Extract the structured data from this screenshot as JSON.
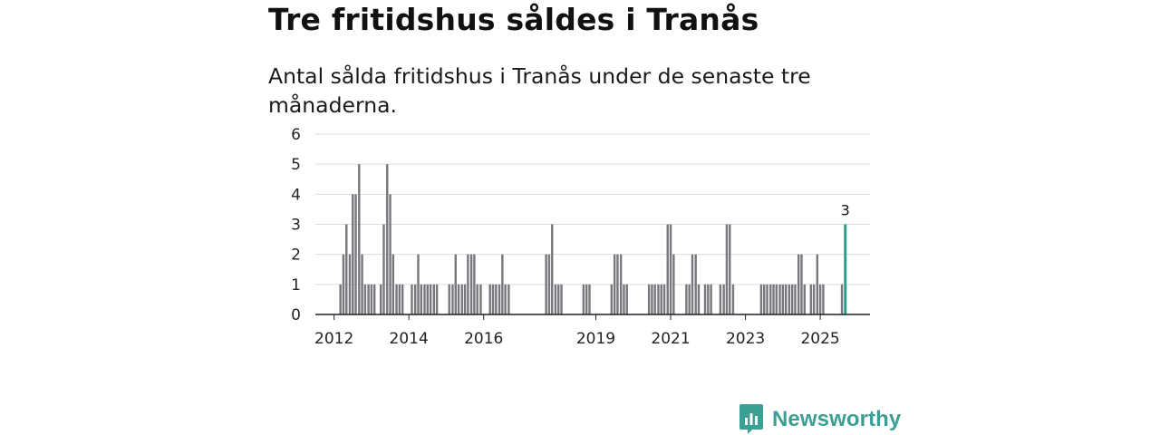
{
  "header": {
    "title": "Tre fritidshus såldes i Tranås",
    "subtitle": "Antal sålda fritidshus i Tranås under de senaste tre månaderna."
  },
  "brand": {
    "name": "Newsworthy",
    "icon": "newsworthy-logo-icon",
    "color": "#3c9f93"
  },
  "colors": {
    "bar": "#77777d",
    "highlight": "#2a9d8f",
    "grid": "#dddddd",
    "axis": "#222222"
  },
  "chart_data": {
    "type": "bar",
    "title": "Tre fritidshus såldes i Tranås",
    "subtitle": "Antal sålda fritidshus i Tranås under de senaste tre månaderna.",
    "xlabel": "",
    "ylabel": "",
    "ylim": [
      0,
      6
    ],
    "yticks": [
      0,
      1,
      2,
      3,
      4,
      5,
      6
    ],
    "xlim": [
      2011.5,
      2026.33
    ],
    "xticks": [
      {
        "value": 2012,
        "label": "2012"
      },
      {
        "value": 2014,
        "label": "2014"
      },
      {
        "value": 2016,
        "label": "2016"
      },
      {
        "value": 2019,
        "label": "2019"
      },
      {
        "value": 2021,
        "label": "2021"
      },
      {
        "value": 2023,
        "label": "2023"
      },
      {
        "value": 2025,
        "label": "2025"
      }
    ],
    "grid": true,
    "period": "monthly, rolling three-month sum",
    "series": [
      {
        "name": "Antal sålda fritidshus",
        "bars": [
          {
            "x": 2012.17,
            "value": 1
          },
          {
            "x": 2012.25,
            "value": 2
          },
          {
            "x": 2012.33,
            "value": 3
          },
          {
            "x": 2012.42,
            "value": 2
          },
          {
            "x": 2012.5,
            "value": 4
          },
          {
            "x": 2012.58,
            "value": 4
          },
          {
            "x": 2012.67,
            "value": 5
          },
          {
            "x": 2012.75,
            "value": 2
          },
          {
            "x": 2012.83,
            "value": 1
          },
          {
            "x": 2012.92,
            "value": 1
          },
          {
            "x": 2013.0,
            "value": 1
          },
          {
            "x": 2013.08,
            "value": 1
          },
          {
            "x": 2013.25,
            "value": 1
          },
          {
            "x": 2013.33,
            "value": 3
          },
          {
            "x": 2013.42,
            "value": 5
          },
          {
            "x": 2013.5,
            "value": 4
          },
          {
            "x": 2013.58,
            "value": 2
          },
          {
            "x": 2013.67,
            "value": 1
          },
          {
            "x": 2013.75,
            "value": 1
          },
          {
            "x": 2013.83,
            "value": 1
          },
          {
            "x": 2014.08,
            "value": 1
          },
          {
            "x": 2014.17,
            "value": 1
          },
          {
            "x": 2014.25,
            "value": 2
          },
          {
            "x": 2014.33,
            "value": 1
          },
          {
            "x": 2014.42,
            "value": 1
          },
          {
            "x": 2014.5,
            "value": 1
          },
          {
            "x": 2014.58,
            "value": 1
          },
          {
            "x": 2014.67,
            "value": 1
          },
          {
            "x": 2014.75,
            "value": 1
          },
          {
            "x": 2015.08,
            "value": 1
          },
          {
            "x": 2015.17,
            "value": 1
          },
          {
            "x": 2015.25,
            "value": 2
          },
          {
            "x": 2015.33,
            "value": 1
          },
          {
            "x": 2015.42,
            "value": 1
          },
          {
            "x": 2015.5,
            "value": 1
          },
          {
            "x": 2015.58,
            "value": 2
          },
          {
            "x": 2015.67,
            "value": 2
          },
          {
            "x": 2015.75,
            "value": 2
          },
          {
            "x": 2015.83,
            "value": 1
          },
          {
            "x": 2015.92,
            "value": 1
          },
          {
            "x": 2016.17,
            "value": 1
          },
          {
            "x": 2016.25,
            "value": 1
          },
          {
            "x": 2016.33,
            "value": 1
          },
          {
            "x": 2016.42,
            "value": 1
          },
          {
            "x": 2016.5,
            "value": 2
          },
          {
            "x": 2016.58,
            "value": 1
          },
          {
            "x": 2016.67,
            "value": 1
          },
          {
            "x": 2017.67,
            "value": 2
          },
          {
            "x": 2017.75,
            "value": 2
          },
          {
            "x": 2017.83,
            "value": 3
          },
          {
            "x": 2017.92,
            "value": 1
          },
          {
            "x": 2018.0,
            "value": 1
          },
          {
            "x": 2018.08,
            "value": 1
          },
          {
            "x": 2018.67,
            "value": 1
          },
          {
            "x": 2018.75,
            "value": 1
          },
          {
            "x": 2018.83,
            "value": 1
          },
          {
            "x": 2019.42,
            "value": 1
          },
          {
            "x": 2019.5,
            "value": 2
          },
          {
            "x": 2019.58,
            "value": 2
          },
          {
            "x": 2019.67,
            "value": 2
          },
          {
            "x": 2019.75,
            "value": 1
          },
          {
            "x": 2019.83,
            "value": 1
          },
          {
            "x": 2020.42,
            "value": 1
          },
          {
            "x": 2020.5,
            "value": 1
          },
          {
            "x": 2020.58,
            "value": 1
          },
          {
            "x": 2020.67,
            "value": 1
          },
          {
            "x": 2020.75,
            "value": 1
          },
          {
            "x": 2020.83,
            "value": 1
          },
          {
            "x": 2020.92,
            "value": 3
          },
          {
            "x": 2021.0,
            "value": 3
          },
          {
            "x": 2021.08,
            "value": 2
          },
          {
            "x": 2021.42,
            "value": 1
          },
          {
            "x": 2021.5,
            "value": 1
          },
          {
            "x": 2021.58,
            "value": 2
          },
          {
            "x": 2021.67,
            "value": 2
          },
          {
            "x": 2021.75,
            "value": 1
          },
          {
            "x": 2021.92,
            "value": 1
          },
          {
            "x": 2022.0,
            "value": 1
          },
          {
            "x": 2022.08,
            "value": 1
          },
          {
            "x": 2022.33,
            "value": 1
          },
          {
            "x": 2022.42,
            "value": 1
          },
          {
            "x": 2022.5,
            "value": 3
          },
          {
            "x": 2022.58,
            "value": 3
          },
          {
            "x": 2022.67,
            "value": 1
          },
          {
            "x": 2023.42,
            "value": 1
          },
          {
            "x": 2023.5,
            "value": 1
          },
          {
            "x": 2023.58,
            "value": 1
          },
          {
            "x": 2023.67,
            "value": 1
          },
          {
            "x": 2023.75,
            "value": 1
          },
          {
            "x": 2023.83,
            "value": 1
          },
          {
            "x": 2023.92,
            "value": 1
          },
          {
            "x": 2024.0,
            "value": 1
          },
          {
            "x": 2024.08,
            "value": 1
          },
          {
            "x": 2024.17,
            "value": 1
          },
          {
            "x": 2024.25,
            "value": 1
          },
          {
            "x": 2024.33,
            "value": 1
          },
          {
            "x": 2024.42,
            "value": 2
          },
          {
            "x": 2024.5,
            "value": 2
          },
          {
            "x": 2024.58,
            "value": 1
          },
          {
            "x": 2024.75,
            "value": 1
          },
          {
            "x": 2024.83,
            "value": 1
          },
          {
            "x": 2024.92,
            "value": 2
          },
          {
            "x": 2025.0,
            "value": 1
          },
          {
            "x": 2025.08,
            "value": 1
          },
          {
            "x": 2025.58,
            "value": 1
          },
          {
            "x": 2025.67,
            "value": 3,
            "highlight": true,
            "label": "3"
          }
        ]
      }
    ]
  }
}
